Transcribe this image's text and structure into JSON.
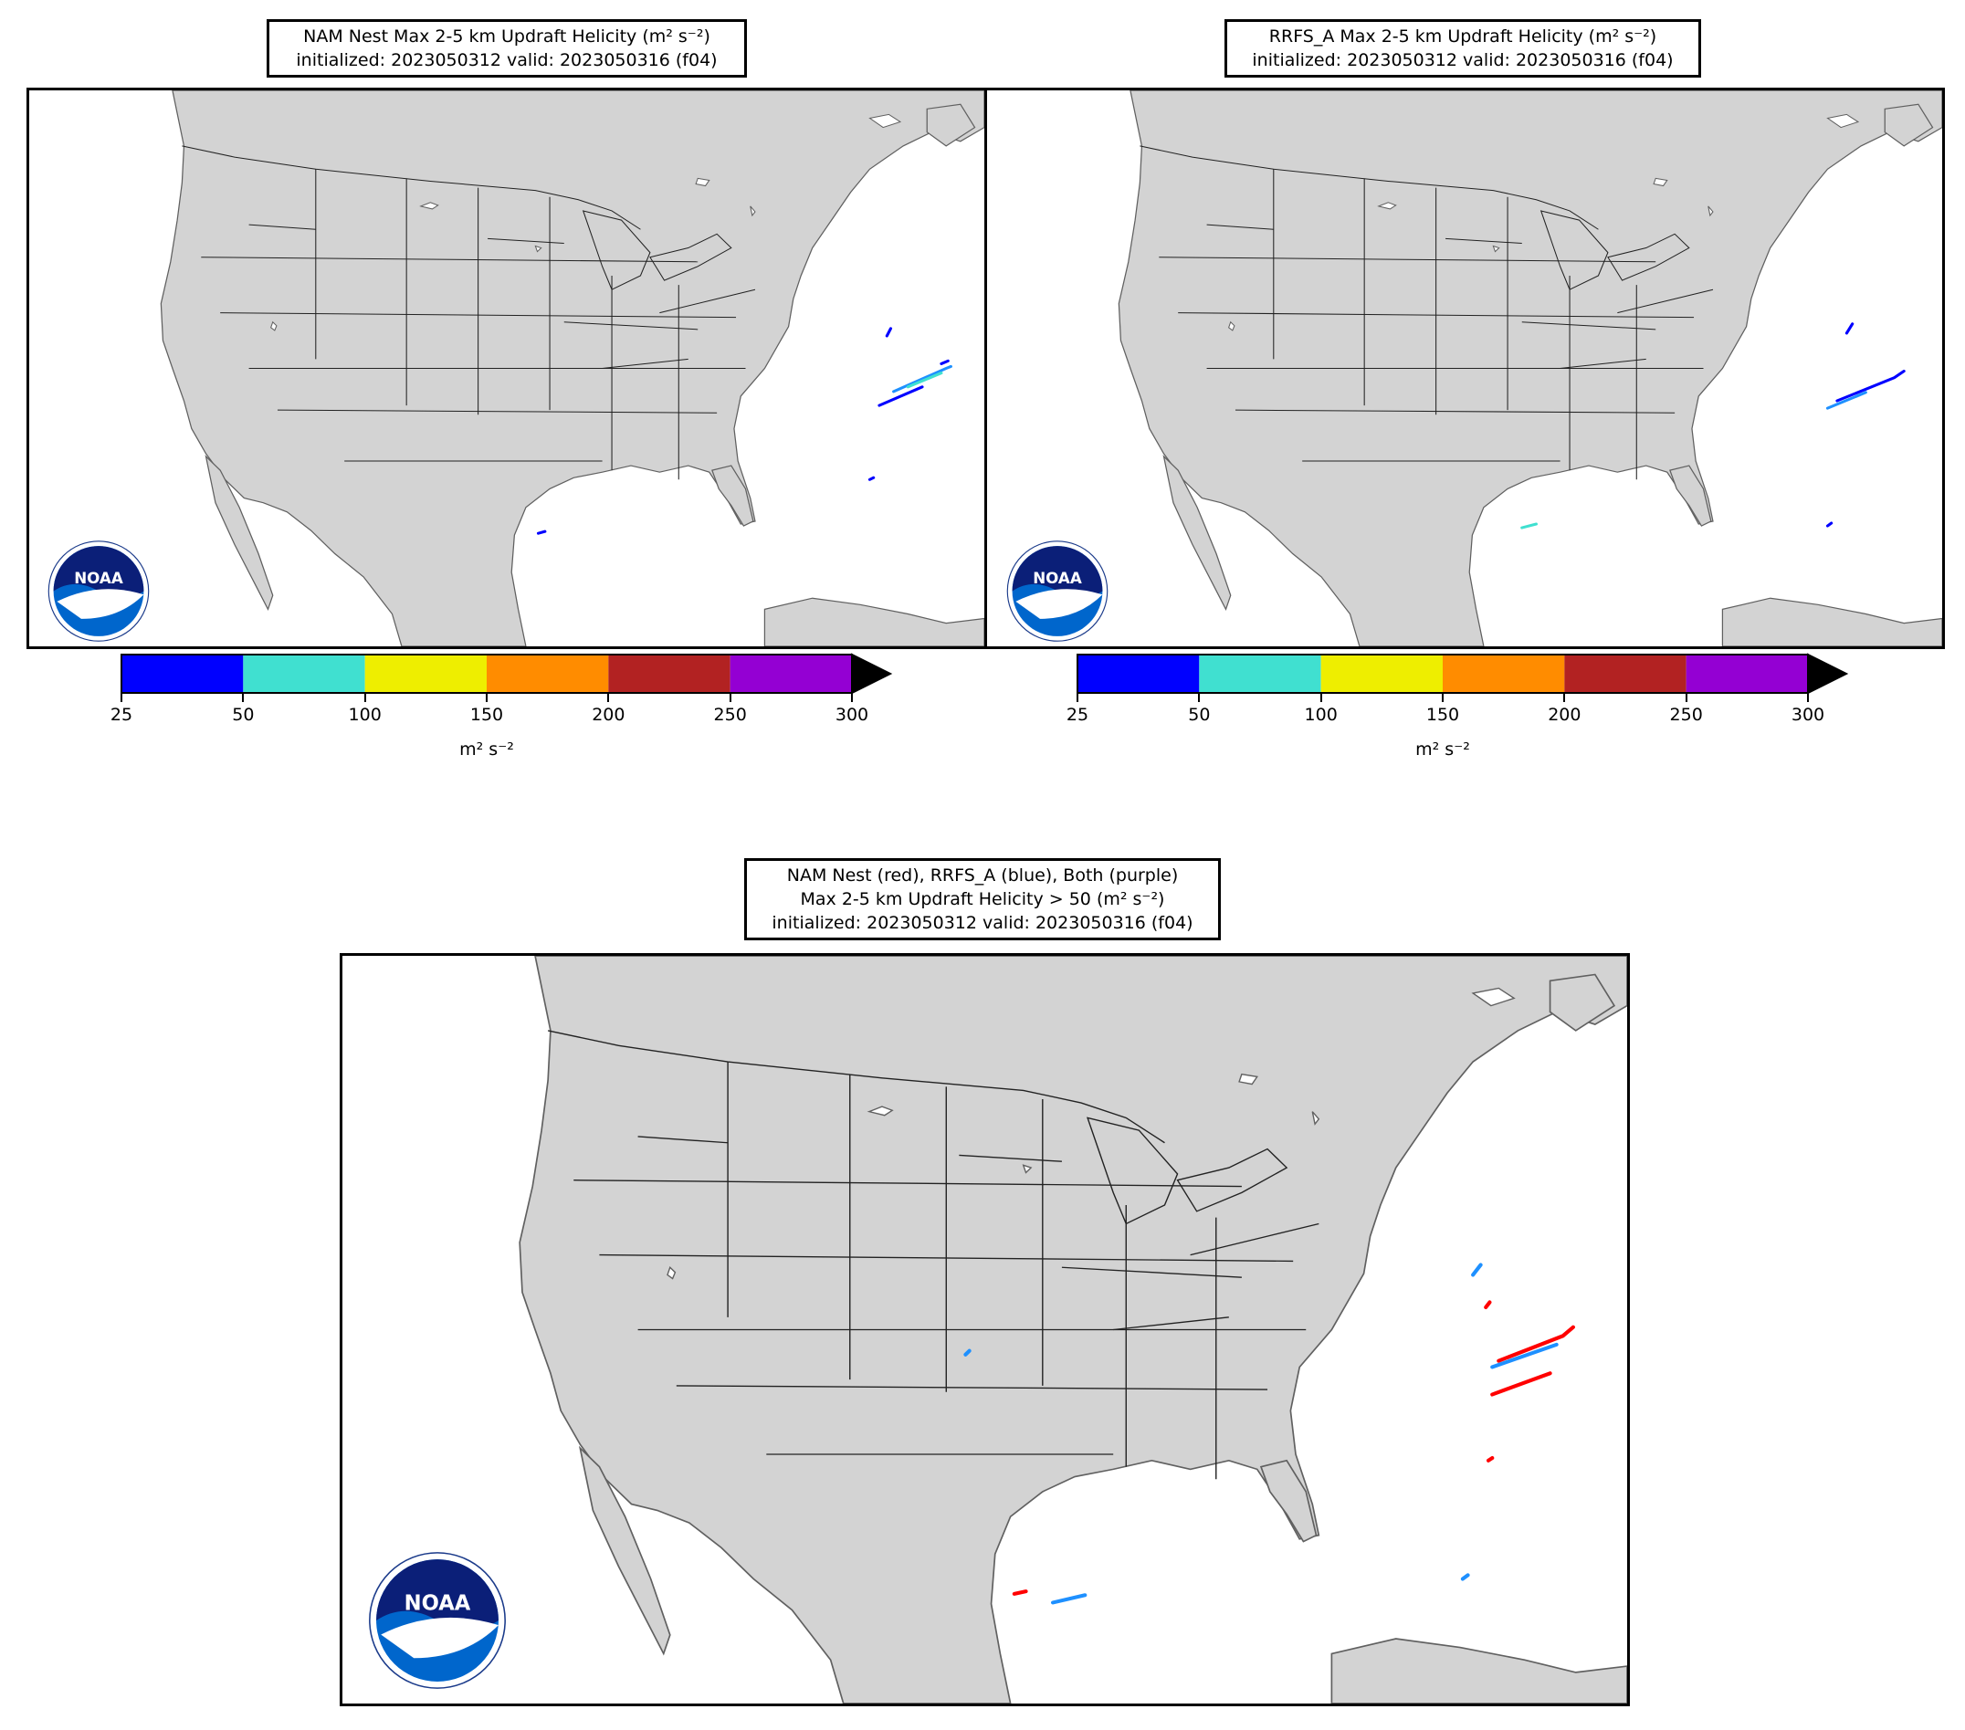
{
  "panels": {
    "nam": {
      "title_line1": "NAM Nest Max 2-5 km Updraft Helicity (m² s⁻²)",
      "title_line2": "initialized: 2023050312 valid: 2023050316 (f04)"
    },
    "rrfs": {
      "title_line1": "RRFS_A Max 2-5 km Updraft Helicity (m² s⁻²)",
      "title_line2": "initialized: 2023050312 valid: 2023050316 (f04)"
    },
    "compare": {
      "title_line1": "NAM Nest (red), RRFS_A (blue), Both (purple)",
      "title_line2": "Max 2-5 km Updraft Helicity > 50 (m² s⁻²)",
      "title_line3": "initialized: 2023050312 valid: 2023050316 (f04)"
    }
  },
  "colorbar": {
    "ticks": [
      "25",
      "50",
      "100",
      "150",
      "200",
      "250",
      "300"
    ],
    "colors": [
      "#0000ff",
      "#40e0d0",
      "#eeee00",
      "#ff8c00",
      "#b22222",
      "#9400d3"
    ],
    "extend_color": "#000000",
    "unit": "m² s⁻²"
  },
  "logo": {
    "agency_name": "NATIONAL OCEANIC AND ATMOSPHERIC ADMINISTRATION",
    "department": "U.S. DEPARTMENT OF COMMERCE",
    "wordmark": "NOAA"
  },
  "colors": {
    "land": "#d3d3d3",
    "ocean": "#ffffff",
    "nam": "#ff0000",
    "rrfs": "#1e90ff",
    "both": "#800080"
  }
}
